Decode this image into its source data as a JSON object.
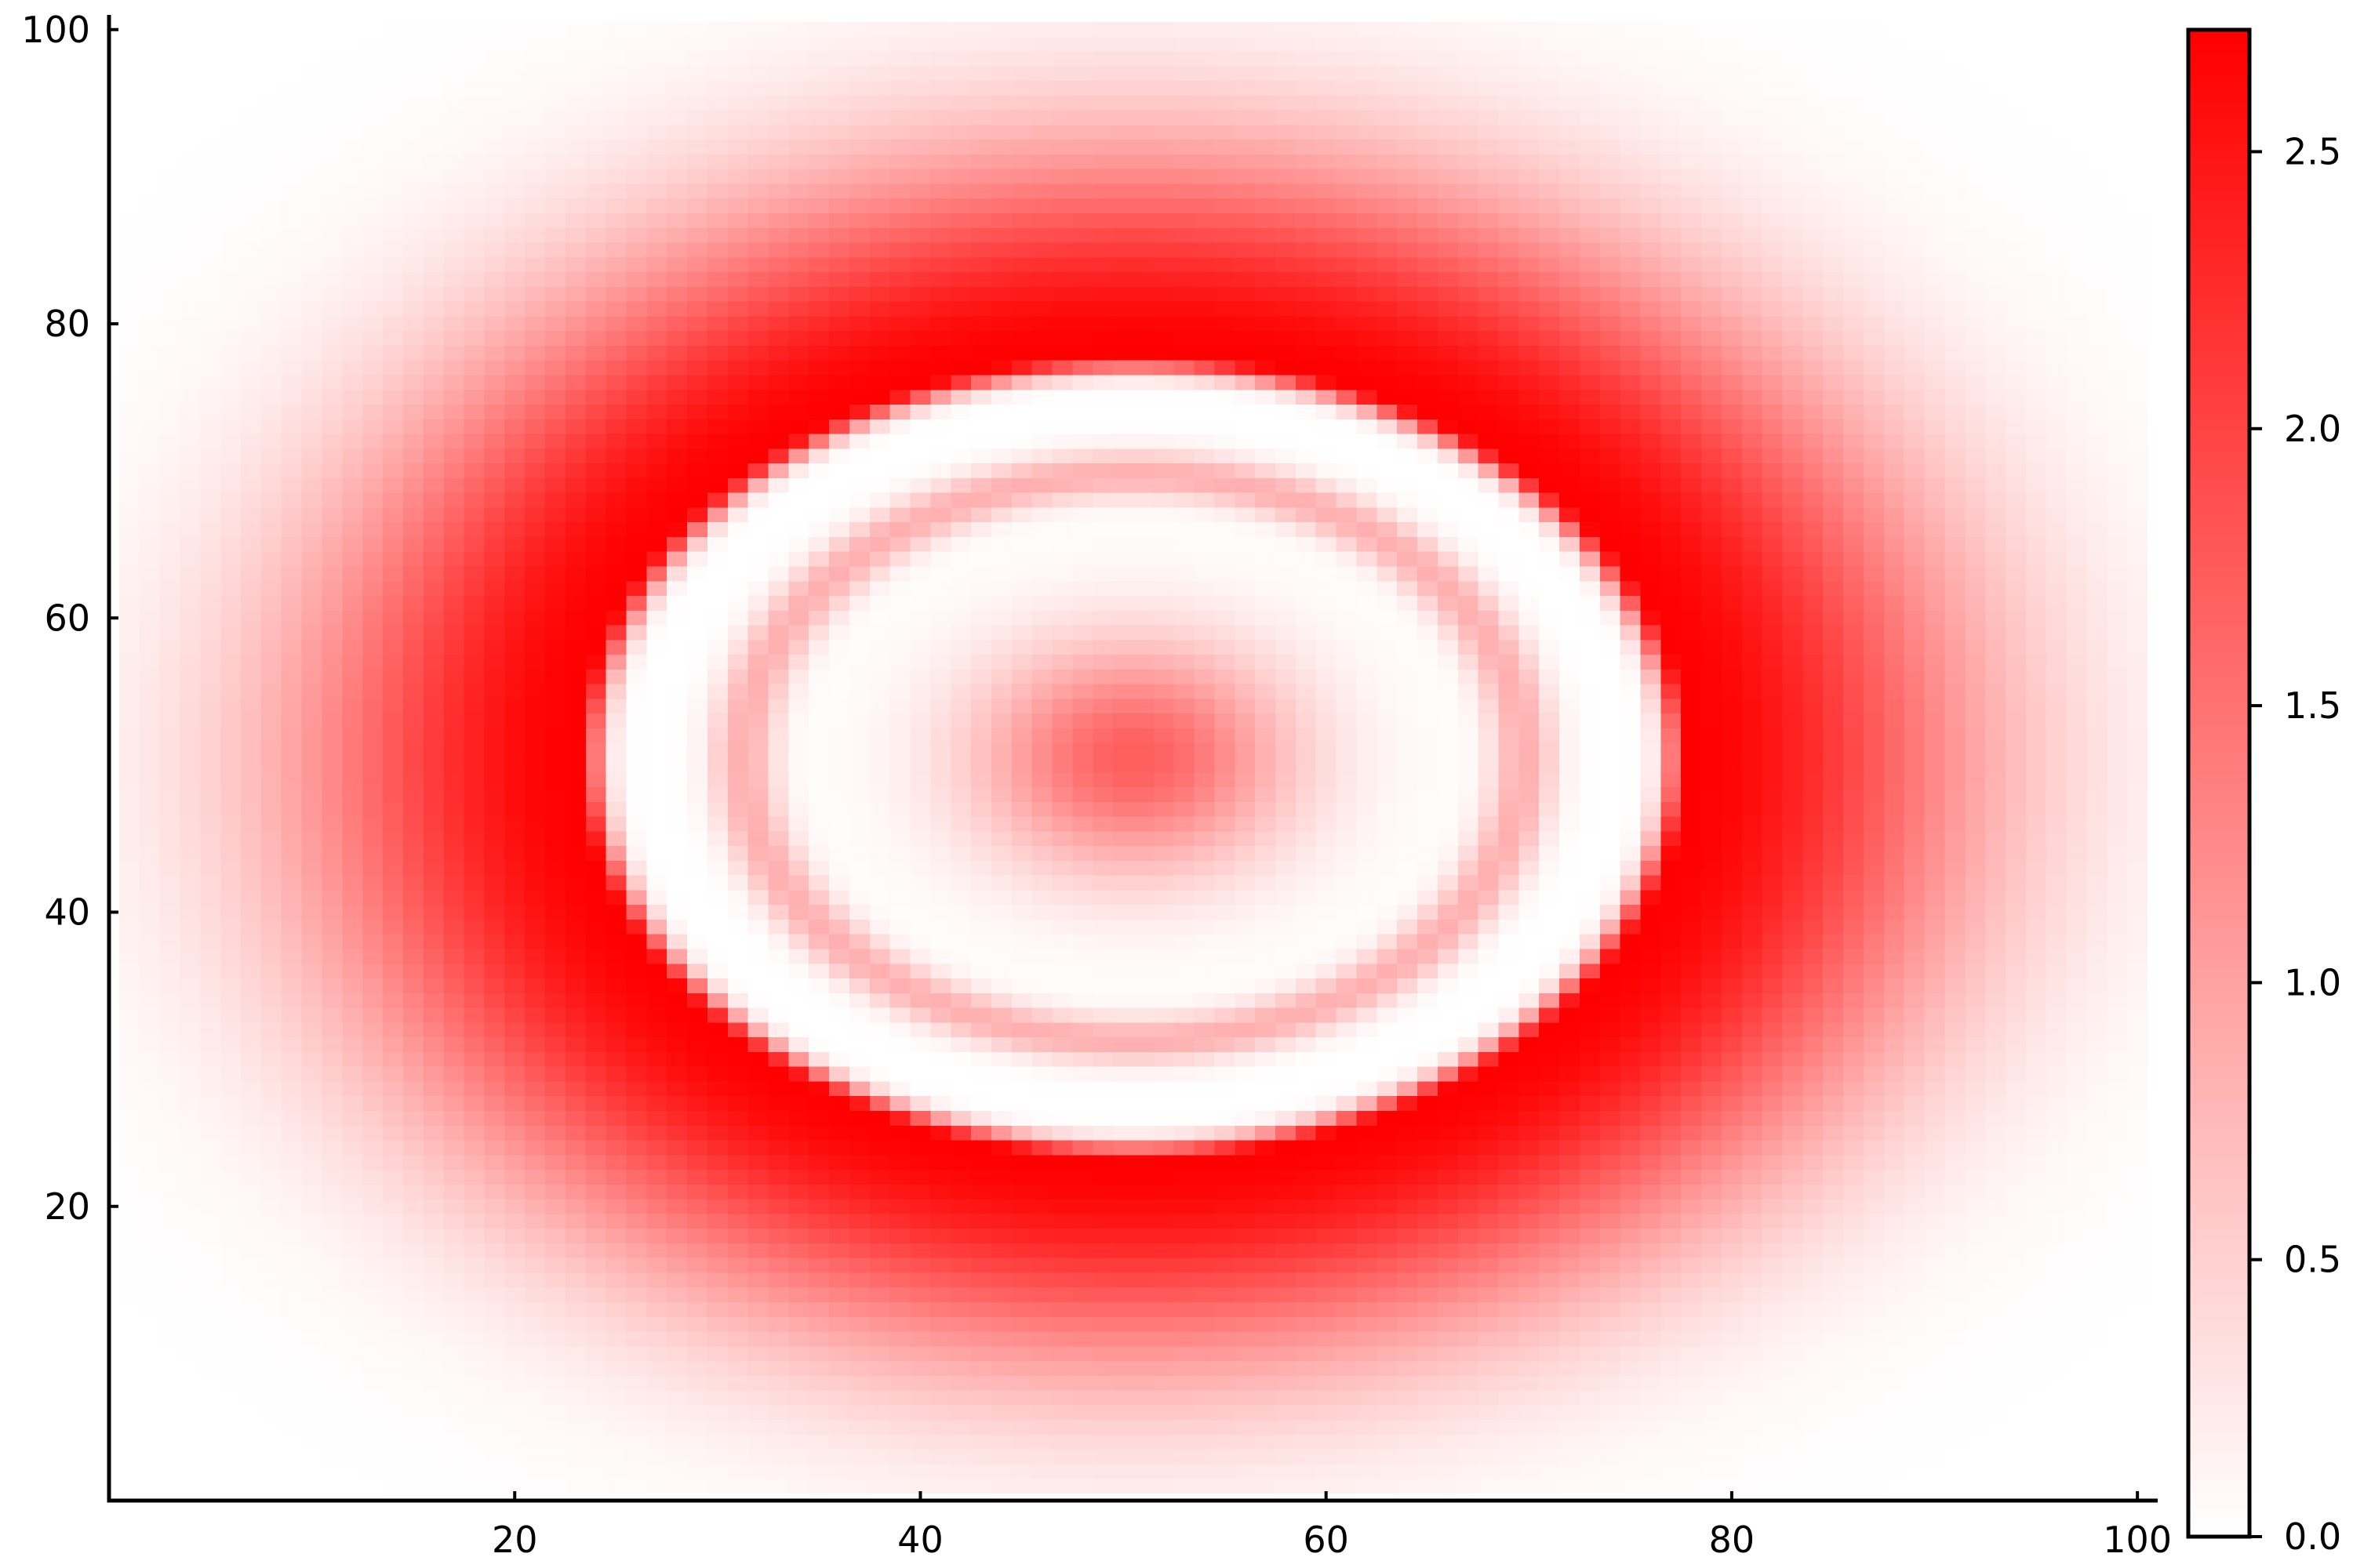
{
  "chart_data": {
    "type": "heatmap",
    "title": "",
    "xlabel": "",
    "ylabel": "",
    "xlim": [
      0,
      101
    ],
    "ylim": [
      0,
      101
    ],
    "grid": false,
    "grid_size": [
      100,
      100
    ],
    "x_ticks": [
      20,
      40,
      60,
      80,
      100
    ],
    "y_ticks": [
      20,
      40,
      60,
      80,
      100
    ],
    "x_tick_labels": [
      "20",
      "40",
      "60",
      "80",
      "100"
    ],
    "y_tick_labels": [
      "20",
      "40",
      "60",
      "80",
      "100"
    ],
    "field": {
      "description_center": [
        50.5,
        50.5
      ],
      "x_halfwidth": 27.5,
      "y_halfwidth": 27.5,
      "expression": "r = sqrt(((x-50.5)/27.5)^2 + ((y-50.5)/27.5)^2); value = r<=1 ? |1.8*cos(3*pi*r) + 0.9*cos(...)| : 2.72*exp(-((r-1)/0.55)^2)"
    },
    "colorbar": {
      "min": 0.0,
      "max": 2.72,
      "ticks": [
        0.0,
        0.5,
        1.0,
        1.5,
        2.0,
        2.5
      ],
      "tick_labels": [
        "0.0",
        "0.5",
        "1.0",
        "1.5",
        "2.0",
        "2.5"
      ],
      "colormap": [
        "#ffffff",
        "#ff0000"
      ]
    }
  }
}
